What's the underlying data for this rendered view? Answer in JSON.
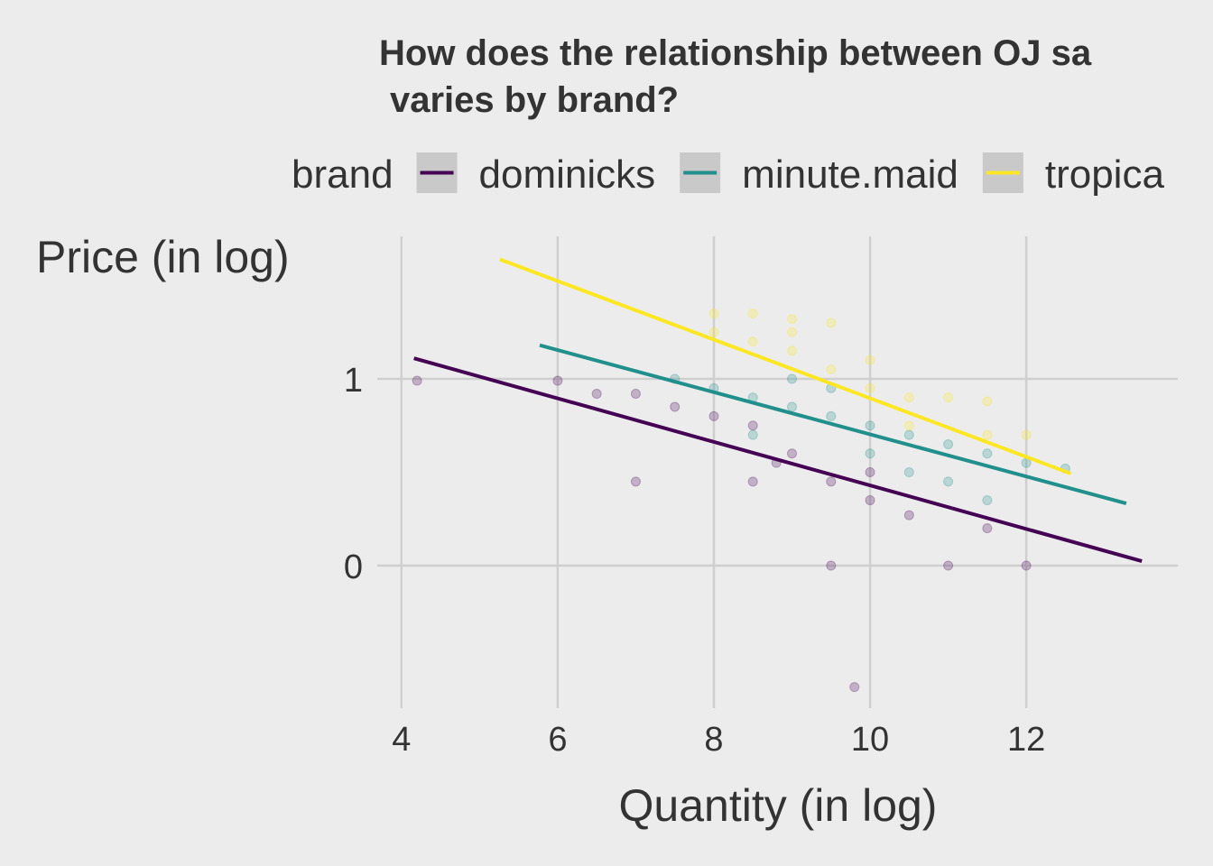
{
  "chart_data": {
    "type": "scatter",
    "title_lines": [
      "How does the relationship between OJ sa",
      "varies by brand?"
    ],
    "legend_title": "brand",
    "x_label": "Quantity (in log)",
    "y_label": "Price (in log)",
    "xlim": [
      3.69,
      13.94
    ],
    "ylim": [
      -0.763,
      1.763
    ],
    "xticks": [
      4,
      6,
      8,
      10,
      12
    ],
    "yticks": [
      0,
      1
    ],
    "grid": true,
    "legend_position": "top",
    "series": [
      {
        "name": "dominicks",
        "color": "#440154",
        "x": [
          4.2,
          6,
          6.5,
          7,
          7.5,
          8,
          8.5,
          7,
          8.5,
          9.5,
          9,
          10,
          10.5,
          9.5,
          11,
          12,
          9.8,
          11.5,
          8.8,
          10
        ],
        "values": [
          0.99,
          0.99,
          0.92,
          0.92,
          0.85,
          0.8,
          0.75,
          0.45,
          0.45,
          0.45,
          0.6,
          0.35,
          0.27,
          0,
          0,
          0,
          -0.65,
          0.2,
          0.55,
          0.5
        ],
        "fit": {
          "x": [
            4.16,
            13.48
          ],
          "values": [
            1.11,
            0.024
          ]
        }
      },
      {
        "name": "minute.maid",
        "color": "#21908c",
        "x": [
          7.5,
          8,
          8.5,
          9,
          9.5,
          10,
          10.5,
          11,
          11.5,
          12,
          12.5,
          9,
          10,
          11,
          11.5,
          8.5,
          10.5,
          9.5
        ],
        "values": [
          1,
          0.95,
          0.9,
          0.85,
          0.8,
          0.75,
          0.7,
          0.65,
          0.6,
          0.55,
          0.52,
          1,
          0.6,
          0.45,
          0.35,
          0.7,
          0.5,
          0.95
        ],
        "fit": {
          "x": [
            5.77,
            13.28
          ],
          "values": [
            1.18,
            0.333
          ]
        }
      },
      {
        "name": "tropica",
        "color": "#fde725",
        "x": [
          8,
          8.5,
          9,
          9.5,
          8.5,
          9,
          10,
          9.5,
          8,
          10.5,
          11,
          11.5,
          10,
          12,
          11.5,
          9,
          10.5
        ],
        "values": [
          1.35,
          1.35,
          1.32,
          1.3,
          1.2,
          1.15,
          1.1,
          1.05,
          1.25,
          0.9,
          0.9,
          0.88,
          0.95,
          0.7,
          0.7,
          1.25,
          0.75
        ],
        "fit": {
          "x": [
            5.26,
            12.57
          ],
          "values": [
            1.64,
            0.493
          ]
        }
      }
    ]
  }
}
